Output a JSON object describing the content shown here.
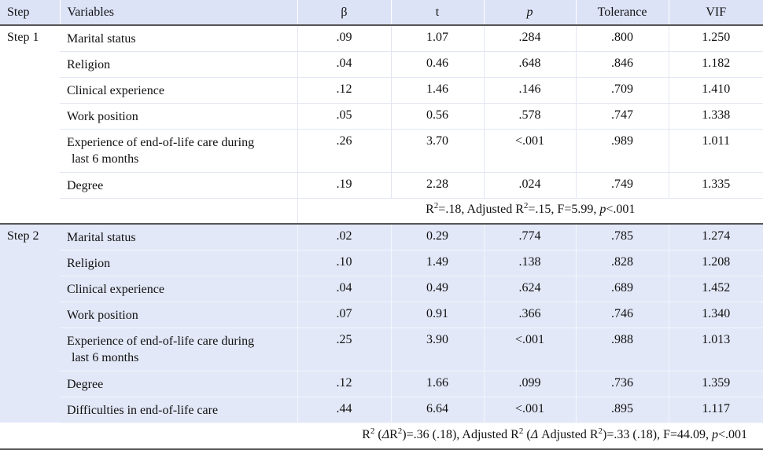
{
  "headers": {
    "step": "Step",
    "variables": "Variables",
    "beta": "β",
    "t": "t",
    "p": "p",
    "tolerance": "Tolerance",
    "vif": "VIF"
  },
  "step1": {
    "label": "Step 1",
    "rows": [
      {
        "var": "Marital status",
        "var_cont": "",
        "beta": ".09",
        "t": "1.07",
        "p": ".284",
        "tol": ".800",
        "vif": "1.250"
      },
      {
        "var": "Religion",
        "var_cont": "",
        "beta": ".04",
        "t": "0.46",
        "p": ".648",
        "tol": ".846",
        "vif": "1.182"
      },
      {
        "var": "Clinical experience",
        "var_cont": "",
        "beta": ".12",
        "t": "1.46",
        "p": ".146",
        "tol": ".709",
        "vif": "1.410"
      },
      {
        "var": "Work position",
        "var_cont": "",
        "beta": ".05",
        "t": "0.56",
        "p": ".578",
        "tol": ".747",
        "vif": "1.338"
      },
      {
        "var": "Experience of end-of-life care during",
        "var_cont": "last 6 months",
        "beta": ".26",
        "t": "3.70",
        "p": "<.001",
        "tol": ".989",
        "vif": "1.011"
      },
      {
        "var": "Degree",
        "var_cont": "",
        "beta": ".19",
        "t": "2.28",
        "p": ".024",
        "tol": ".749",
        "vif": "1.335"
      }
    ],
    "summary": {
      "r": "R",
      "r_sup": "2",
      "r_val": "=.18, Adjusted  R",
      "adj_sup": "2",
      "adj_val": "=.15, F=5.99, ",
      "p_label": "p",
      "p_val": "<.001"
    }
  },
  "step2": {
    "label": "Step 2",
    "rows": [
      {
        "var": "Marital status",
        "var_cont": "",
        "beta": ".02",
        "t": "0.29",
        "p": ".774",
        "tol": ".785",
        "vif": "1.274"
      },
      {
        "var": "Religion",
        "var_cont": "",
        "beta": ".10",
        "t": "1.49",
        "p": ".138",
        "tol": ".828",
        "vif": "1.208"
      },
      {
        "var": "Clinical experience",
        "var_cont": "",
        "beta": ".04",
        "t": "0.49",
        "p": ".624",
        "tol": ".689",
        "vif": "1.452"
      },
      {
        "var": "Work position",
        "var_cont": "",
        "beta": ".07",
        "t": "0.91",
        "p": ".366",
        "tol": ".746",
        "vif": "1.340"
      },
      {
        "var": "Experience of end-of-life care during",
        "var_cont": "last 6 months",
        "beta": ".25",
        "t": "3.90",
        "p": "<.001",
        "tol": ".988",
        "vif": "1.013"
      },
      {
        "var": "Degree",
        "var_cont": "",
        "beta": ".12",
        "t": "1.66",
        "p": ".099",
        "tol": ".736",
        "vif": "1.359"
      },
      {
        "var": "Difficulties in end-of-life care",
        "var_cont": "",
        "beta": ".44",
        "t": "6.64",
        "p": "<.001",
        "tol": ".895",
        "vif": "1.117"
      }
    ],
    "summary": {
      "r": "R",
      "r_sup": "2",
      "delta_open": " (",
      "delta_sym": "Δ",
      "delta_r": "R",
      "delta_sup": "2",
      "r_val": ")=.36 (.18),  Adjusted R",
      "adj_sup": "2",
      "adj_open": " (",
      "adj_delta_sym": "Δ",
      "adj_delta_text": " Adjusted R",
      "adj_delta_sup": "2",
      "adj_val": ")=.33 (.18),  F=44.09,  ",
      "p_label": "p",
      "p_val": "<.001"
    }
  }
}
